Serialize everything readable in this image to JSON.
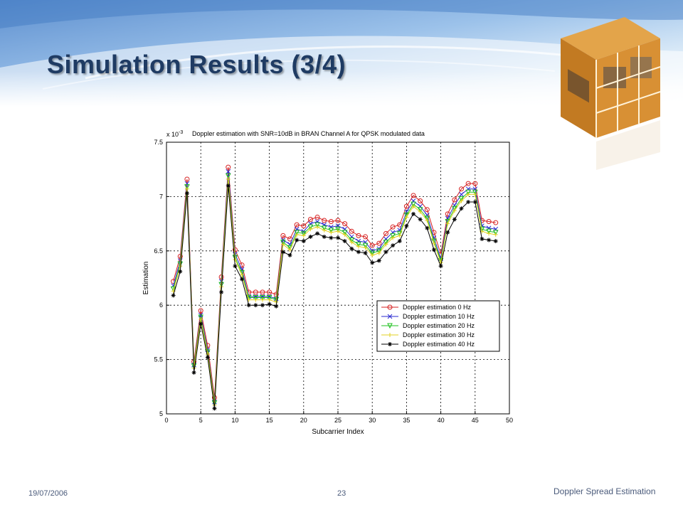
{
  "slide": {
    "title": "Simulation Results (3/4)",
    "date": "19/07/2006",
    "page": "23",
    "topic": "Doppler Spread Estimation"
  },
  "theme": {
    "title_color": "#1f3b63",
    "banner_blue": "#6fa0d8",
    "cube_orange": "#d08a2a"
  },
  "chart_data": {
    "type": "line",
    "title": "Doppler estimation with SNR=10dB in BRAN Channel A for QPSK modulated data",
    "exponent_label": "x 10",
    "exponent_power": "-3",
    "xlabel": "Subcarrier Index",
    "ylabel": "Estimation",
    "xlim": [
      0,
      50
    ],
    "ylim": [
      5,
      7.5
    ],
    "xticks": [
      0,
      5,
      10,
      15,
      20,
      25,
      30,
      35,
      40,
      45,
      50
    ],
    "yticks": [
      5,
      5.5,
      6,
      6.5,
      7,
      7.5
    ],
    "ytick_labels": [
      "5",
      "5.5",
      "6",
      "6.5",
      "7",
      "7.5"
    ],
    "grid": true,
    "legend_position": "lower-right",
    "x": [
      1,
      2,
      3,
      4,
      5,
      6,
      7,
      8,
      9,
      10,
      11,
      12,
      13,
      14,
      15,
      16,
      17,
      18,
      19,
      20,
      21,
      22,
      23,
      24,
      25,
      26,
      27,
      28,
      29,
      30,
      31,
      32,
      33,
      34,
      35,
      36,
      37,
      38,
      39,
      40,
      41,
      42,
      43,
      44,
      45,
      46,
      47,
      48
    ],
    "series": [
      {
        "name": "Doppler estimation 0 Hz",
        "color": "#d62020",
        "marker": "circle",
        "values": [
          6.22,
          6.45,
          7.16,
          5.48,
          5.95,
          5.63,
          5.15,
          6.26,
          7.27,
          6.51,
          6.37,
          6.12,
          6.12,
          6.12,
          6.12,
          6.1,
          6.64,
          6.61,
          6.74,
          6.73,
          6.79,
          6.81,
          6.78,
          6.77,
          6.78,
          6.75,
          6.68,
          6.64,
          6.63,
          6.55,
          6.57,
          6.66,
          6.72,
          6.74,
          6.91,
          7.01,
          6.96,
          6.88,
          6.67,
          6.47,
          6.84,
          6.97,
          7.07,
          7.12,
          7.12,
          6.78,
          6.77,
          6.76
        ]
      },
      {
        "name": "Doppler estimation 10 Hz",
        "color": "#2a2ad0",
        "marker": "x",
        "values": [
          6.18,
          6.41,
          7.12,
          5.45,
          5.91,
          5.59,
          5.11,
          6.22,
          7.23,
          6.47,
          6.33,
          6.08,
          6.08,
          6.08,
          6.08,
          6.06,
          6.6,
          6.56,
          6.7,
          6.68,
          6.75,
          6.77,
          6.74,
          6.72,
          6.73,
          6.7,
          6.63,
          6.59,
          6.58,
          6.5,
          6.52,
          6.61,
          6.67,
          6.69,
          6.86,
          6.96,
          6.91,
          6.83,
          6.62,
          6.43,
          6.8,
          6.92,
          7.02,
          7.07,
          7.07,
          6.73,
          6.71,
          6.7
        ]
      },
      {
        "name": "Doppler estimation 20 Hz",
        "color": "#20c020",
        "marker": "triangle-down",
        "values": [
          6.15,
          6.38,
          7.09,
          5.44,
          5.89,
          5.57,
          5.1,
          6.19,
          7.19,
          6.44,
          6.3,
          6.07,
          6.07,
          6.07,
          6.07,
          6.05,
          6.58,
          6.53,
          6.67,
          6.66,
          6.72,
          6.74,
          6.71,
          6.69,
          6.7,
          6.67,
          6.6,
          6.56,
          6.55,
          6.48,
          6.5,
          6.58,
          6.64,
          6.66,
          6.83,
          6.93,
          6.88,
          6.8,
          6.59,
          6.41,
          6.77,
          6.89,
          6.98,
          7.04,
          7.04,
          6.7,
          6.68,
          6.67
        ]
      },
      {
        "name": "Doppler estimation 30 Hz",
        "color": "#e0d020",
        "marker": "plus",
        "values": [
          6.13,
          6.36,
          7.07,
          5.42,
          5.87,
          5.55,
          5.08,
          6.17,
          7.16,
          6.42,
          6.28,
          6.05,
          6.05,
          6.05,
          6.05,
          6.03,
          6.56,
          6.51,
          6.65,
          6.64,
          6.7,
          6.72,
          6.69,
          6.67,
          6.68,
          6.65,
          6.58,
          6.54,
          6.53,
          6.46,
          6.48,
          6.56,
          6.62,
          6.64,
          6.81,
          6.91,
          6.86,
          6.78,
          6.57,
          6.39,
          6.75,
          6.87,
          6.96,
          7.02,
          7.02,
          6.68,
          6.66,
          6.65
        ]
      },
      {
        "name": "Doppler estimation 40 Hz",
        "color": "#000000",
        "marker": "star",
        "values": [
          6.09,
          6.31,
          7.03,
          5.38,
          5.83,
          5.52,
          5.05,
          6.12,
          7.1,
          6.36,
          6.24,
          6.0,
          6.0,
          6.0,
          6.01,
          5.99,
          6.49,
          6.46,
          6.6,
          6.59,
          6.63,
          6.66,
          6.63,
          6.62,
          6.62,
          6.59,
          6.52,
          6.49,
          6.48,
          6.39,
          6.41,
          6.49,
          6.55,
          6.59,
          6.73,
          6.84,
          6.79,
          6.71,
          6.51,
          6.36,
          6.67,
          6.79,
          6.89,
          6.95,
          6.95,
          6.61,
          6.6,
          6.59
        ]
      }
    ]
  }
}
